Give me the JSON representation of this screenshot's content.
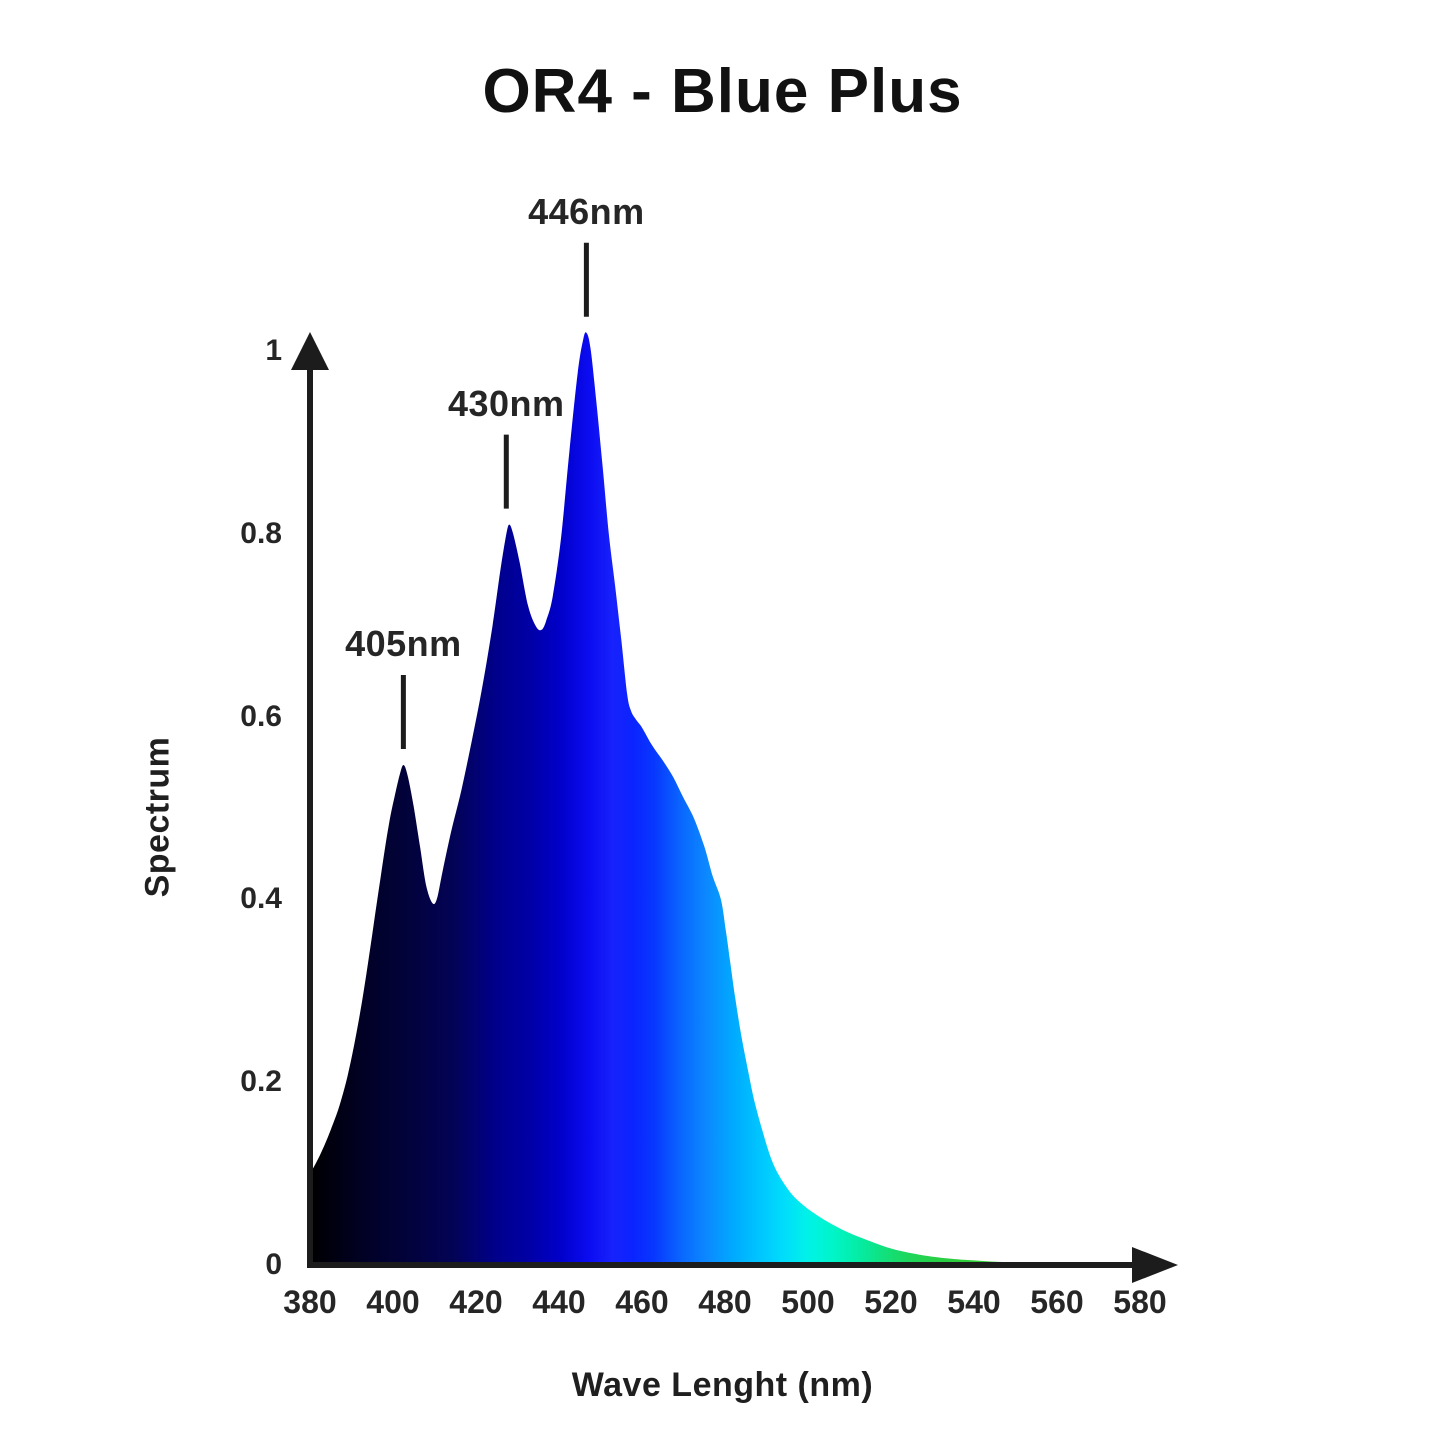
{
  "title": "OR4 - Blue Plus",
  "colors": {
    "background": "#ffffff",
    "axis": "#1c1c1c",
    "text": "#262626",
    "title_text": "#111111"
  },
  "chart_data": {
    "type": "area",
    "title": "OR4 - Blue Plus",
    "xlabel": "Wave Lenght (nm)",
    "ylabel": "Spectrum",
    "xlim": [
      380,
      580
    ],
    "ylim": [
      0,
      1
    ],
    "grid": false,
    "legend": null,
    "x_ticks": [
      380,
      400,
      420,
      440,
      460,
      480,
      500,
      520,
      540,
      560,
      580
    ],
    "y_ticks": [
      {
        "value": 0,
        "label": "0"
      },
      {
        "value": 0.2,
        "label": "0.2"
      },
      {
        "value": 0.4,
        "label": "0.4"
      },
      {
        "value": 0.6,
        "label": "0.6"
      },
      {
        "value": 0.8,
        "label": "0.8"
      },
      {
        "value": 1,
        "label": "1"
      }
    ],
    "annotations": [
      {
        "label": "405nm",
        "anchor_nm": 402.5,
        "peak_value": 0.55
      },
      {
        "label": "430nm",
        "anchor_nm": 427.3,
        "peak_value": 0.81
      },
      {
        "label": "446nm",
        "anchor_nm": 446.6,
        "peak_value": 1.0
      }
    ],
    "series": [
      {
        "name": "spectrum",
        "points": [
          [
            380,
            0.1
          ],
          [
            381.5,
            0.112
          ],
          [
            383,
            0.126
          ],
          [
            385,
            0.148
          ],
          [
            387,
            0.173
          ],
          [
            389,
            0.206
          ],
          [
            391,
            0.249
          ],
          [
            393,
            0.301
          ],
          [
            395,
            0.362
          ],
          [
            397,
            0.424
          ],
          [
            399,
            0.482
          ],
          [
            400.5,
            0.515
          ],
          [
            401.6,
            0.536
          ],
          [
            402.5,
            0.547
          ],
          [
            403.5,
            0.536
          ],
          [
            405,
            0.501
          ],
          [
            406.5,
            0.458
          ],
          [
            408,
            0.415
          ],
          [
            409.5,
            0.396
          ],
          [
            410.6,
            0.401
          ],
          [
            412,
            0.432
          ],
          [
            414,
            0.474
          ],
          [
            416.5,
            0.52
          ],
          [
            419,
            0.574
          ],
          [
            421.5,
            0.632
          ],
          [
            424,
            0.7
          ],
          [
            426,
            0.764
          ],
          [
            427.4,
            0.802
          ],
          [
            428.1,
            0.81
          ],
          [
            429,
            0.799
          ],
          [
            430.5,
            0.769
          ],
          [
            432.5,
            0.722
          ],
          [
            434.4,
            0.699
          ],
          [
            435.8,
            0.695
          ],
          [
            437,
            0.706
          ],
          [
            438.5,
            0.732
          ],
          [
            440.5,
            0.796
          ],
          [
            442.5,
            0.89
          ],
          [
            444.5,
            0.976
          ],
          [
            445.8,
            1.012
          ],
          [
            446.6,
            1.02
          ],
          [
            447.6,
            1.003
          ],
          [
            449,
            0.944
          ],
          [
            450.5,
            0.874
          ],
          [
            452,
            0.8
          ],
          [
            453.5,
            0.744
          ],
          [
            455,
            0.684
          ],
          [
            456.4,
            0.625
          ],
          [
            457.3,
            0.607
          ],
          [
            458.5,
            0.597
          ],
          [
            460,
            0.588
          ],
          [
            462.5,
            0.568
          ],
          [
            465,
            0.552
          ],
          [
            467.5,
            0.534
          ],
          [
            470,
            0.511
          ],
          [
            472.5,
            0.489
          ],
          [
            475,
            0.458
          ],
          [
            477,
            0.426
          ],
          [
            479,
            0.4
          ],
          [
            480.2,
            0.366
          ],
          [
            481.2,
            0.333
          ],
          [
            482.5,
            0.291
          ],
          [
            484,
            0.249
          ],
          [
            485.5,
            0.214
          ],
          [
            487,
            0.181
          ],
          [
            489,
            0.147
          ],
          [
            491,
            0.118
          ],
          [
            493,
            0.098
          ],
          [
            496,
            0.078
          ],
          [
            499,
            0.065
          ],
          [
            502,
            0.055
          ],
          [
            506,
            0.044
          ],
          [
            510,
            0.035
          ],
          [
            515,
            0.026
          ],
          [
            520,
            0.018
          ],
          [
            526,
            0.012
          ],
          [
            532,
            0.008
          ],
          [
            540,
            0.005
          ],
          [
            548,
            0.003
          ],
          [
            556,
            0.002
          ],
          [
            565,
            0.001
          ],
          [
            575,
            0.0005
          ],
          [
            580,
            0
          ]
        ]
      }
    ],
    "gradient_stops": [
      {
        "nm": 380,
        "color": "#000000"
      },
      {
        "nm": 393,
        "color": "#010126"
      },
      {
        "nm": 405,
        "color": "#02023f"
      },
      {
        "nm": 415,
        "color": "#030357"
      },
      {
        "nm": 425,
        "color": "#00008c"
      },
      {
        "nm": 433,
        "color": "#0000a6"
      },
      {
        "nm": 440,
        "color": "#0000c8"
      },
      {
        "nm": 447,
        "color": "#0b0bf0"
      },
      {
        "nm": 453,
        "color": "#1722fc"
      },
      {
        "nm": 458,
        "color": "#0a24ff"
      },
      {
        "nm": 463,
        "color": "#0838ff"
      },
      {
        "nm": 470,
        "color": "#0a6aff"
      },
      {
        "nm": 476,
        "color": "#0b8bff"
      },
      {
        "nm": 482,
        "color": "#00aaff"
      },
      {
        "nm": 488,
        "color": "#00c4ff"
      },
      {
        "nm": 494,
        "color": "#00dcfc"
      },
      {
        "nm": 500,
        "color": "#00f2e8"
      },
      {
        "nm": 506,
        "color": "#00f5c8"
      },
      {
        "nm": 512,
        "color": "#04eda6"
      },
      {
        "nm": 518,
        "color": "#10e17e"
      },
      {
        "nm": 524,
        "color": "#1dd75d"
      },
      {
        "nm": 531,
        "color": "#28cf45"
      },
      {
        "nm": 540,
        "color": "#30cc36"
      },
      {
        "nm": 580,
        "color": "#30cc36"
      }
    ]
  }
}
